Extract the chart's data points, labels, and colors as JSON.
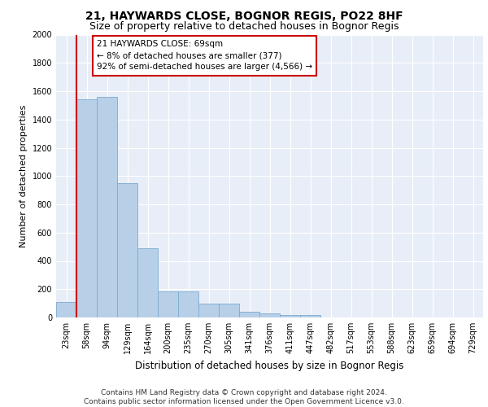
{
  "title": "21, HAYWARDS CLOSE, BOGNOR REGIS, PO22 8HF",
  "subtitle": "Size of property relative to detached houses in Bognor Regis",
  "xlabel": "Distribution of detached houses by size in Bognor Regis",
  "ylabel": "Number of detached properties",
  "bin_labels": [
    "23sqm",
    "58sqm",
    "94sqm",
    "129sqm",
    "164sqm",
    "200sqm",
    "235sqm",
    "270sqm",
    "305sqm",
    "341sqm",
    "376sqm",
    "411sqm",
    "447sqm",
    "482sqm",
    "517sqm",
    "553sqm",
    "588sqm",
    "623sqm",
    "659sqm",
    "694sqm",
    "729sqm"
  ],
  "bar_heights": [
    110,
    1540,
    1560,
    950,
    490,
    185,
    185,
    100,
    100,
    40,
    30,
    20,
    15,
    0,
    0,
    0,
    0,
    0,
    0,
    0,
    0
  ],
  "bar_color": "#b8cfe8",
  "bar_edge_color": "#7aaad0",
  "background_color": "#e8eef8",
  "grid_color": "#ffffff",
  "vline_color": "#cc0000",
  "ylim": [
    0,
    2000
  ],
  "yticks": [
    0,
    200,
    400,
    600,
    800,
    1000,
    1200,
    1400,
    1600,
    1800,
    2000
  ],
  "annotation_text": "21 HAYWARDS CLOSE: 69sqm\n← 8% of detached houses are smaller (377)\n92% of semi-detached houses are larger (4,566) →",
  "annotation_box_color": "#ffffff",
  "annotation_box_edge": "#cc0000",
  "footer_text": "Contains HM Land Registry data © Crown copyright and database right 2024.\nContains public sector information licensed under the Open Government Licence v3.0.",
  "title_fontsize": 10,
  "subtitle_fontsize": 9,
  "xlabel_fontsize": 8.5,
  "ylabel_fontsize": 8,
  "tick_fontsize": 7,
  "annotation_fontsize": 7.5,
  "footer_fontsize": 6.5
}
